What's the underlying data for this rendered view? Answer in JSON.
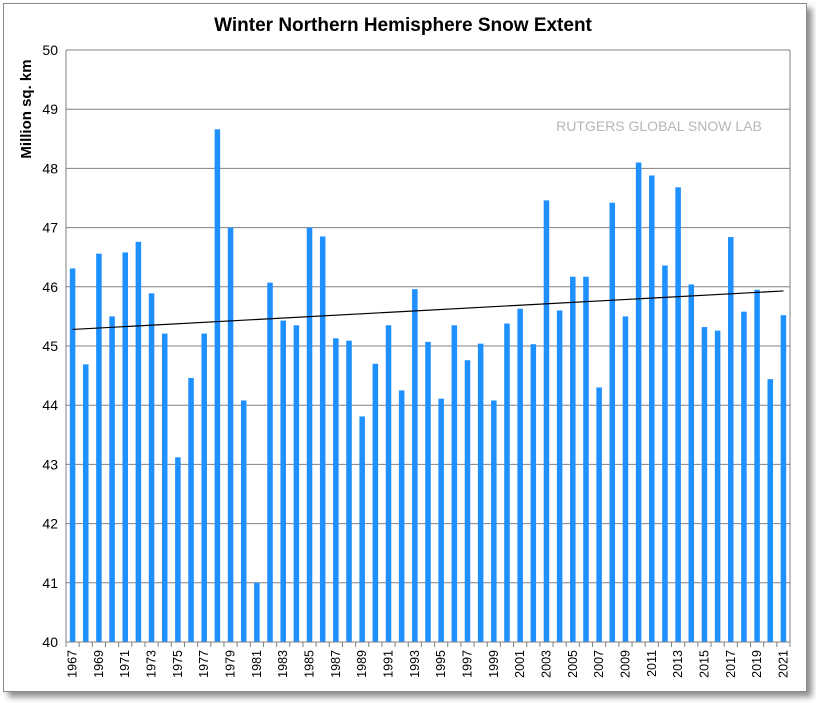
{
  "chart_data": {
    "type": "bar",
    "title": "Winter Northern Hemisphere Snow Extent",
    "ylabel": "Million sq. km",
    "xlabel": "",
    "watermark": "RUTGERS GLOBAL SNOW LAB",
    "ylim": [
      40,
      50
    ],
    "yticks": [
      40,
      41,
      42,
      43,
      44,
      45,
      46,
      47,
      48,
      49,
      50
    ],
    "grid": true,
    "legend": "none",
    "bar_color": "#1e90ff",
    "trend_color": "#000000",
    "trendline": {
      "start": [
        1967,
        45.28
      ],
      "end": [
        2021,
        45.93
      ]
    },
    "categories": [
      "1967",
      "1968",
      "1969",
      "1970",
      "1971",
      "1972",
      "1973",
      "1974",
      "1975",
      "1976",
      "1977",
      "1978",
      "1979",
      "1980",
      "1981",
      "1982",
      "1983",
      "1984",
      "1985",
      "1986",
      "1987",
      "1988",
      "1989",
      "1990",
      "1991",
      "1992",
      "1993",
      "1994",
      "1995",
      "1996",
      "1997",
      "1998",
      "1999",
      "2000",
      "2001",
      "2002",
      "2003",
      "2004",
      "2005",
      "2006",
      "2007",
      "2008",
      "2009",
      "2010",
      "2011",
      "2012",
      "2013",
      "2014",
      "2015",
      "2016",
      "2017",
      "2018",
      "2019",
      "2020",
      "2021"
    ],
    "values": [
      46.31,
      44.69,
      46.56,
      45.5,
      46.58,
      46.76,
      45.89,
      45.21,
      43.12,
      44.46,
      45.21,
      48.66,
      47.0,
      44.08,
      41.0,
      46.07,
      45.43,
      45.35,
      47.0,
      46.85,
      45.13,
      45.09,
      43.81,
      44.7,
      45.35,
      44.25,
      45.96,
      45.07,
      44.11,
      45.35,
      44.76,
      45.04,
      44.08,
      45.38,
      45.63,
      45.03,
      47.46,
      45.6,
      46.17,
      46.17,
      44.3,
      47.42,
      45.5,
      48.1,
      47.88,
      46.36,
      47.68,
      46.04,
      45.32,
      45.26,
      46.84,
      45.58,
      45.95,
      44.44,
      45.52
    ]
  }
}
